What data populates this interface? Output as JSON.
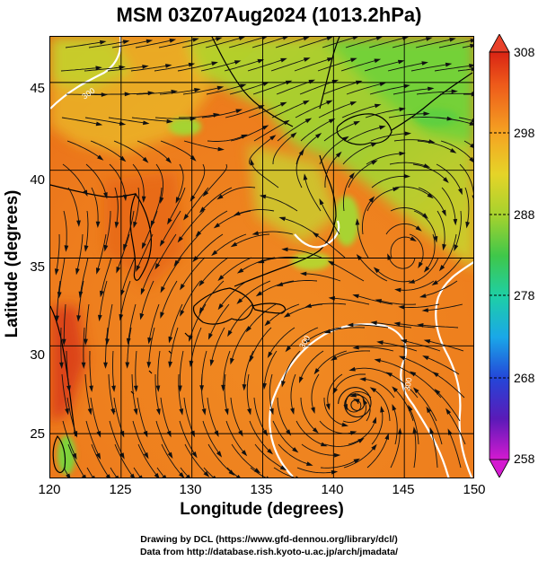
{
  "title": "MSM 03Z07Aug2024 (1013.2hPa)",
  "axes": {
    "xlabel": "Longitude (degrees)",
    "ylabel": "Latitude  (degrees)",
    "xticks": [
      "120",
      "125",
      "130",
      "135",
      "140",
      "145",
      "150"
    ],
    "yticks": [
      "25",
      "30",
      "35",
      "40",
      "45"
    ],
    "xlim": [
      120,
      150
    ],
    "ylim": [
      22.4,
      47.6
    ]
  },
  "colorbar": {
    "ticks": [
      "308",
      "298",
      "288",
      "278",
      "268",
      "258"
    ],
    "range": [
      258,
      308
    ]
  },
  "footer": {
    "line1": "Drawing by DCL (https://www.gfd-dennou.org/library/dcl/)",
    "line2": "Data from http://database.rish.kyoto-u.ac.jp/arch/jmadata/"
  },
  "map": {
    "contour_labels": [
      "300",
      "300",
      "300"
    ],
    "typhoon_center": {
      "lon": 141.6,
      "lat": 26.7
    },
    "land_colors": {
      "warm": "#e9751b",
      "cool": "#7ed23a"
    }
  }
}
